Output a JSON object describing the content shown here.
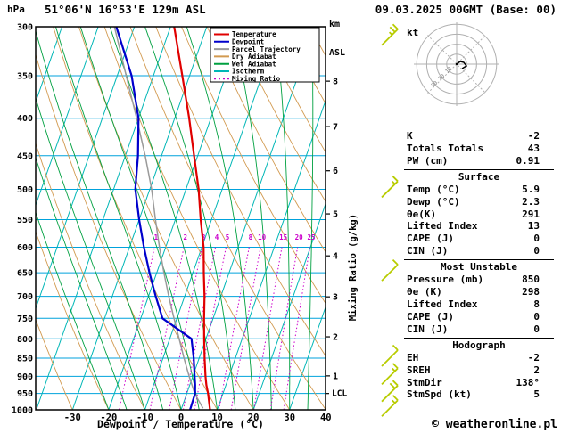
{
  "header": {
    "pressure_unit": "hPa",
    "station": "51°06'N 16°53'E 129m ASL",
    "datetime": "09.03.2025 00GMT (Base: 00)",
    "altitude_axis": {
      "line1": "km",
      "line2": "ASL"
    }
  },
  "chart_data": {
    "type": "line",
    "subtype": "skew-t-log-p-sounding",
    "xlabel": "Dewpoint / Temperature (°C)",
    "x_ticks": [
      -30,
      -20,
      -10,
      0,
      10,
      20,
      30,
      40
    ],
    "x_range": [
      -40,
      40
    ],
    "pressure_ticks": [
      300,
      350,
      400,
      450,
      500,
      550,
      600,
      650,
      700,
      750,
      800,
      850,
      900,
      950,
      1000
    ],
    "pressure_range": [
      300,
      1000
    ],
    "km_ticks": [
      1,
      2,
      3,
      4,
      5,
      6,
      7,
      8
    ],
    "lcl": {
      "label": "LCL",
      "pressure": 950
    },
    "mixing_ratio_axis_label": "Mixing Ratio (g/kg)",
    "mixing_ratio_values": [
      1,
      2,
      3,
      4,
      5,
      8,
      10,
      15,
      20,
      25
    ],
    "colors": {
      "isobar": "#00a2dc",
      "isotherm": "#00b6b6",
      "dry_adiabat": "#d29a50",
      "wet_adiabat": "#00a040",
      "mixing_ratio": "#cc00cc",
      "temperature": "#e00000",
      "dewpoint": "#0000cc",
      "parcel": "#9a9a9a",
      "wind_barb": "#b8cc00"
    },
    "legend": [
      {
        "label": "Temperature",
        "color": "#e00000",
        "dash": ""
      },
      {
        "label": "Dewpoint",
        "color": "#0000cc",
        "dash": ""
      },
      {
        "label": "Parcel Trajectory",
        "color": "#9a9a9a",
        "dash": ""
      },
      {
        "label": "Dry Adiabat",
        "color": "#d29a50",
        "dash": ""
      },
      {
        "label": "Wet Adiabat",
        "color": "#00a040",
        "dash": ""
      },
      {
        "label": "Isotherm",
        "color": "#00b6b6",
        "dash": ""
      },
      {
        "label": "Mixing Ratio",
        "color": "#cc00cc",
        "dash": "2,3"
      }
    ],
    "series": [
      {
        "name": "Temperature",
        "color": "#e00000",
        "width": 2.2,
        "pressure": [
          1000,
          950,
          925,
          900,
          850,
          800,
          750,
          700,
          650,
          600,
          550,
          500,
          450,
          400,
          350,
          300
        ],
        "temp": [
          8.0,
          5.9,
          4.6,
          3.5,
          1.5,
          -0.5,
          -2.5,
          -4.5,
          -7.0,
          -9.5,
          -13.0,
          -16.5,
          -21.0,
          -26.0,
          -32.0,
          -39.0
        ]
      },
      {
        "name": "Dewpoint",
        "color": "#0000cc",
        "width": 2.2,
        "pressure": [
          1000,
          950,
          925,
          900,
          850,
          800,
          750,
          700,
          650,
          600,
          550,
          500,
          450,
          400,
          350,
          300
        ],
        "temp": [
          2.5,
          2.3,
          1.5,
          0.5,
          -1.5,
          -4.0,
          -14.0,
          -18.0,
          -22.0,
          -26.0,
          -30.0,
          -34.0,
          -36.5,
          -40.0,
          -46.0,
          -55.0
        ]
      },
      {
        "name": "Parcel Trajectory",
        "color": "#9a9a9a",
        "width": 1.5,
        "pressure": [
          995,
          950,
          900,
          850,
          800,
          750,
          700,
          650,
          600,
          550,
          500,
          450,
          400,
          350,
          300
        ],
        "temp": [
          5.9,
          2.2,
          -1.0,
          -4.2,
          -7.4,
          -10.8,
          -14.4,
          -18.0,
          -21.7,
          -25.5,
          -29.5,
          -34.5,
          -40.5,
          -47.5,
          -55.5
        ]
      }
    ]
  },
  "wind_barbs": {
    "color": "#b8cc00",
    "levels": [
      {
        "pressure": 310,
        "speed_kt": 25
      },
      {
        "pressure": 500,
        "speed_kt": 15
      },
      {
        "pressure": 650,
        "speed_kt": 10
      },
      {
        "pressure": 850,
        "speed_kt": 10
      },
      {
        "pressure": 900,
        "speed_kt": 15
      },
      {
        "pressure": 950,
        "speed_kt": 20
      },
      {
        "pressure": 995,
        "speed_kt": 15
      }
    ]
  },
  "hodograph": {
    "unit_label": "kt",
    "rings_kt": [
      10,
      20,
      30,
      40
    ],
    "ring_labels": [
      10,
      20,
      30
    ]
  },
  "panel": {
    "sections": [
      {
        "title": "",
        "rows": [
          {
            "label": "K",
            "value": "-2"
          },
          {
            "label": "Totals Totals",
            "value": "43"
          },
          {
            "label": "PW (cm)",
            "value": "0.91"
          }
        ]
      },
      {
        "title": "Surface",
        "rows": [
          {
            "label": "Temp (°C)",
            "value": "5.9"
          },
          {
            "label": "Dewp (°C)",
            "value": "2.3"
          },
          {
            "label": "θe(K)",
            "value": "291"
          },
          {
            "label": "Lifted Index",
            "value": "13"
          },
          {
            "label": "CAPE (J)",
            "value": "0"
          },
          {
            "label": "CIN (J)",
            "value": "0"
          }
        ]
      },
      {
        "title": "Most Unstable",
        "rows": [
          {
            "label": "Pressure (mb)",
            "value": "850"
          },
          {
            "label": "θe (K)",
            "value": "298"
          },
          {
            "label": "Lifted Index",
            "value": "8"
          },
          {
            "label": "CAPE (J)",
            "value": "0"
          },
          {
            "label": "CIN (J)",
            "value": "0"
          }
        ]
      },
      {
        "title": "Hodograph",
        "rows": [
          {
            "label": "EH",
            "value": "-2"
          },
          {
            "label": "SREH",
            "value": "2"
          },
          {
            "label": "StmDir",
            "value": "138°"
          },
          {
            "label": "StmSpd (kt)",
            "value": "5"
          }
        ]
      }
    ]
  },
  "footer": {
    "copyright": "© weatheronline.pl"
  }
}
